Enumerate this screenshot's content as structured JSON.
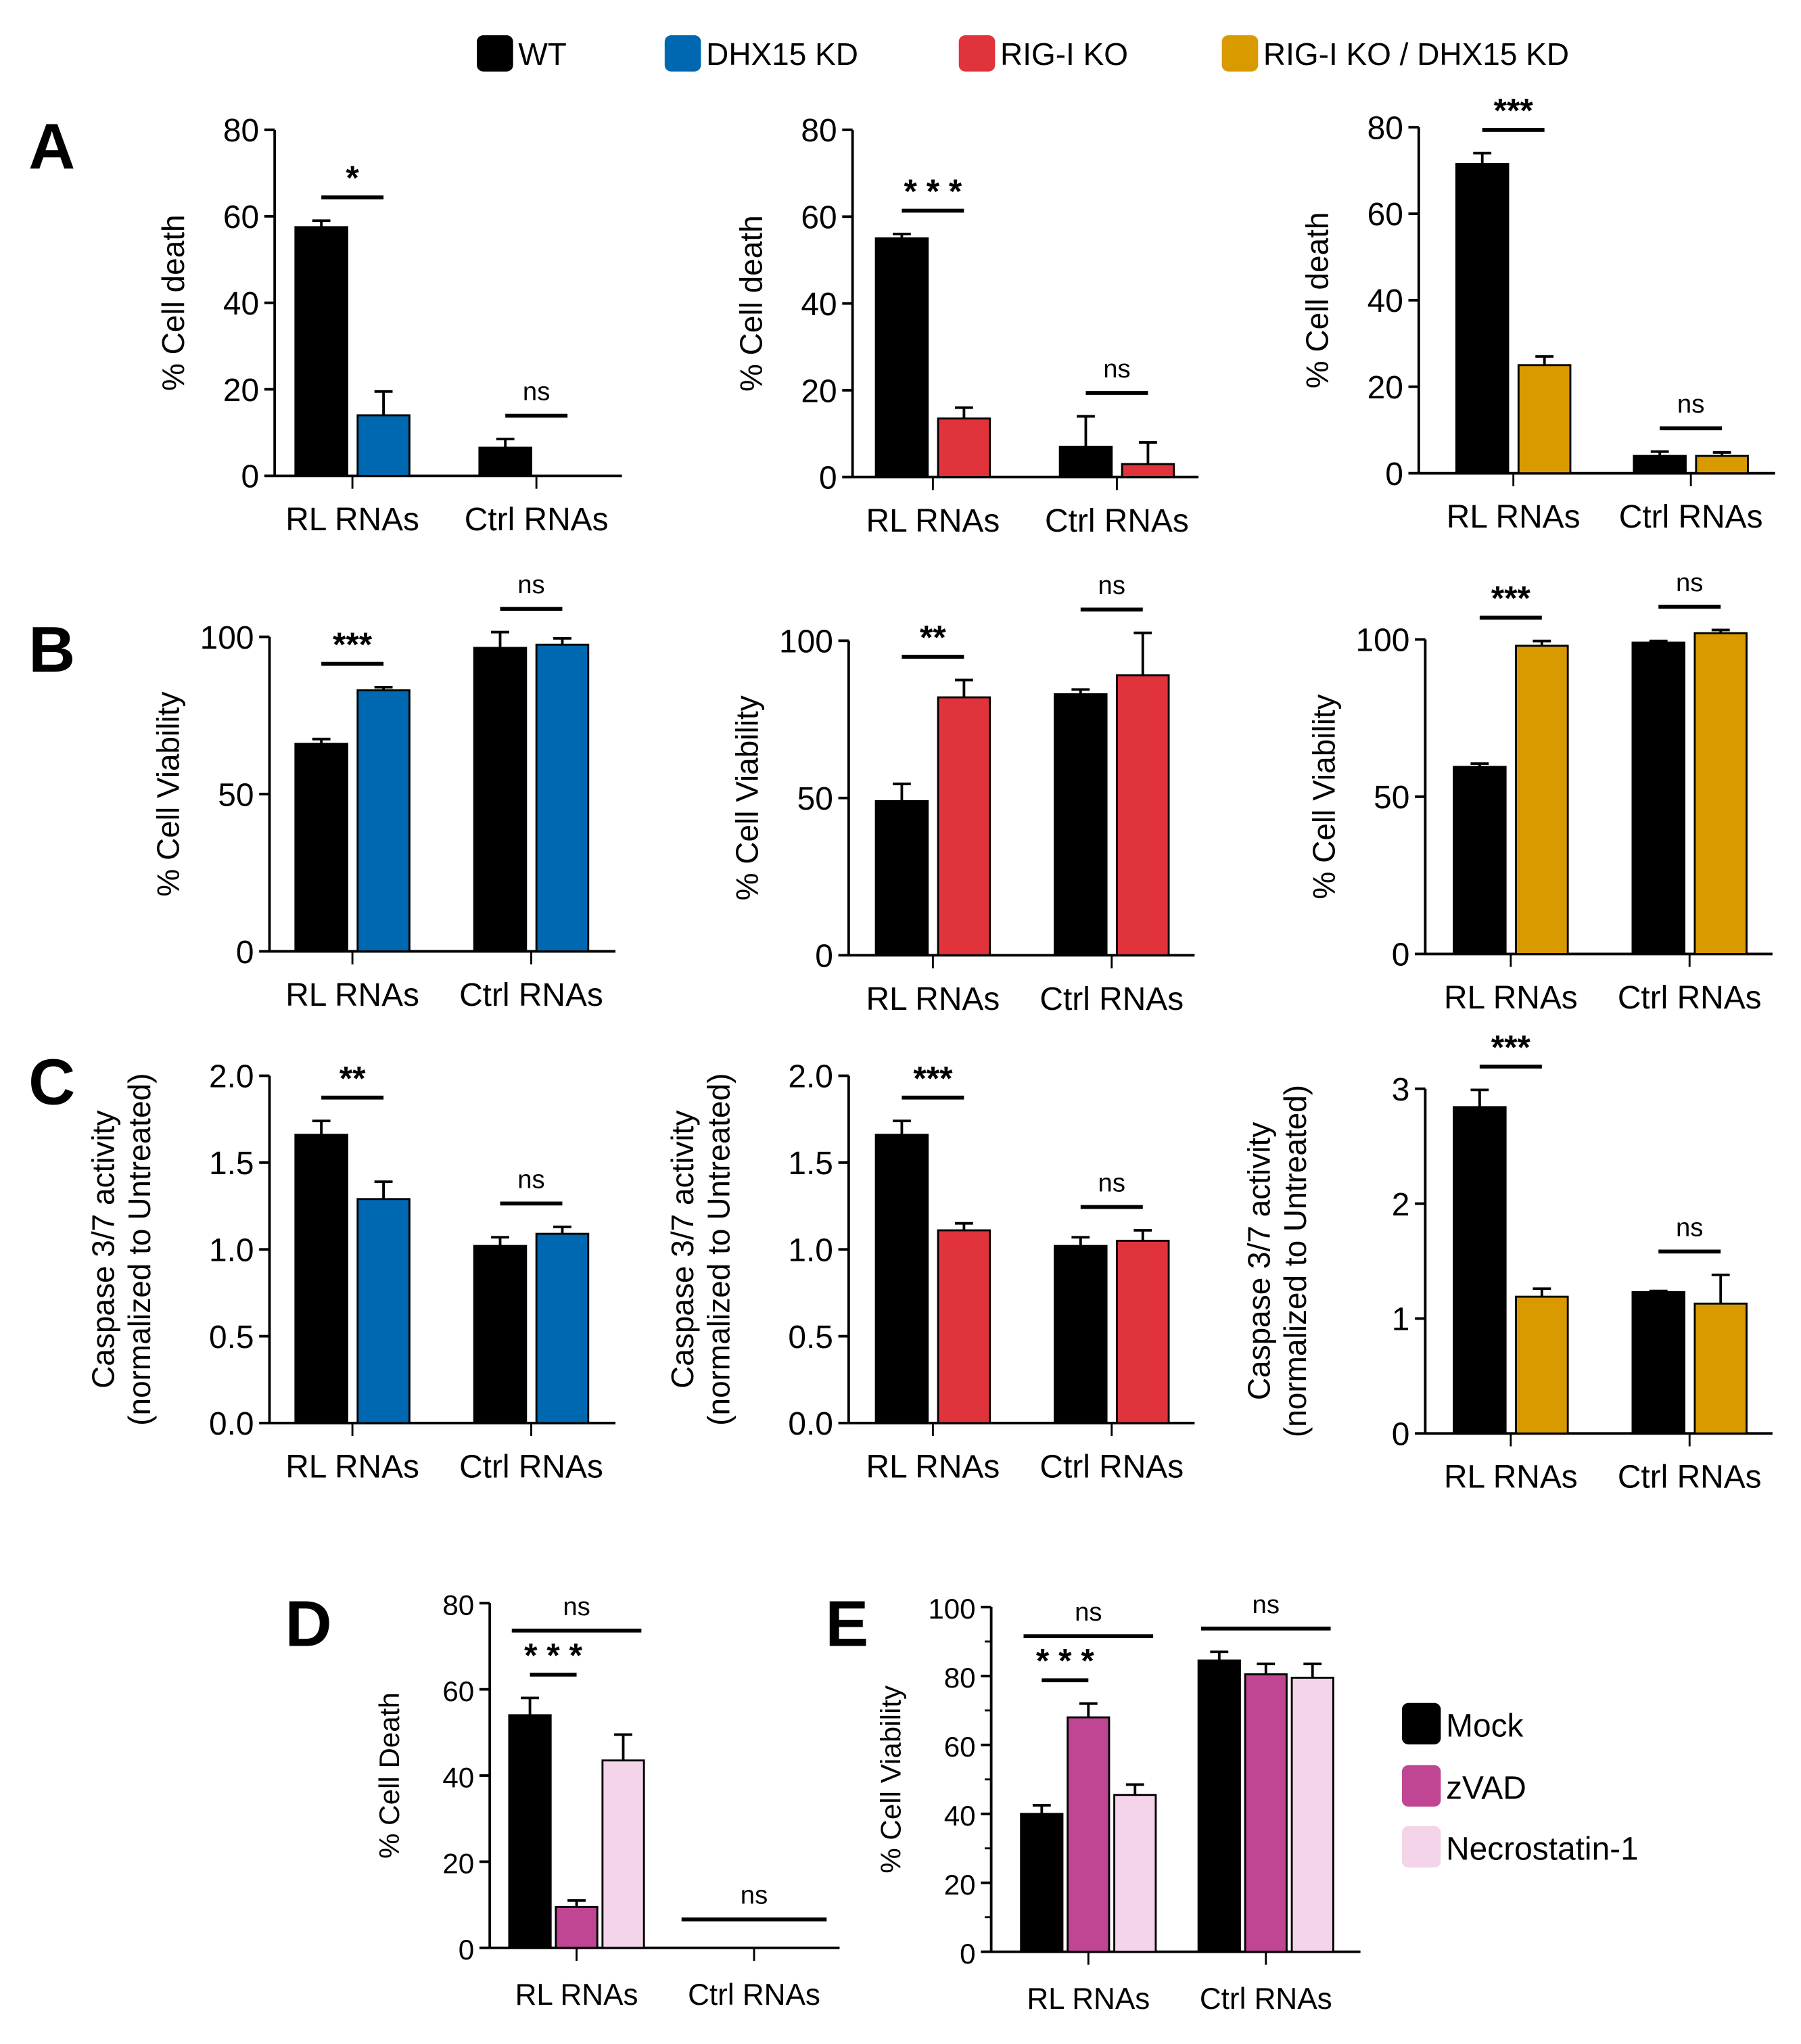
{
  "legend_top": [
    {
      "label": "WT",
      "color": "#000000"
    },
    {
      "label": "DHX15 KD",
      "color": "#0068b0"
    },
    {
      "label": "RIG-I KO",
      "color": "#e0333c"
    },
    {
      "label": "RIG-I KO / DHX15 KD",
      "color": "#d99a00"
    }
  ],
  "legend_bottom": [
    {
      "label": "Mock",
      "color": "#000000"
    },
    {
      "label": "zVAD",
      "color": "#c04593"
    },
    {
      "label": "Necrostatin-1",
      "color": "#f3d4e9"
    }
  ],
  "panel_letters": [
    "A",
    "B",
    "C",
    "D",
    "E"
  ],
  "chart_data": [
    {
      "id": "A1",
      "type": "bar",
      "ylabel": [
        "% Cell death"
      ],
      "ylim": [
        0,
        80
      ],
      "yticks": [
        "0",
        "20",
        "40",
        "60",
        "80"
      ],
      "categories": [
        "RL RNAs",
        "Ctrl RNAs"
      ],
      "series": [
        {
          "name": "WT",
          "color": "#000000",
          "values": [
            57.5,
            6.5
          ],
          "errors": [
            1.5,
            2
          ]
        },
        {
          "name": "DHX15 KD",
          "color": "#0068b0",
          "values": [
            14,
            0
          ],
          "errors": [
            5.5,
            0
          ]
        }
      ],
      "significance": [
        {
          "group": 0,
          "label": "*"
        },
        {
          "group": 1,
          "label": "ns"
        }
      ]
    },
    {
      "id": "A2",
      "type": "bar",
      "ylabel": [
        "% Cell death"
      ],
      "ylim": [
        0,
        80
      ],
      "yticks": [
        "0",
        "20",
        "40",
        "60",
        "80"
      ],
      "categories": [
        "RL RNAs",
        "Ctrl RNAs"
      ],
      "series": [
        {
          "name": "WT",
          "color": "#000000",
          "values": [
            55,
            7
          ],
          "errors": [
            1,
            7
          ]
        },
        {
          "name": "RIG-I KO",
          "color": "#e0333c",
          "values": [
            13.5,
            3
          ],
          "errors": [
            2.5,
            5
          ]
        }
      ],
      "significance": [
        {
          "group": 0,
          "label": "* * *"
        },
        {
          "group": 1,
          "label": "ns"
        }
      ]
    },
    {
      "id": "A3",
      "type": "bar",
      "ylabel": [
        "% Cell death"
      ],
      "ylim": [
        0,
        80
      ],
      "yticks": [
        "0",
        "20",
        "40",
        "60",
        "80"
      ],
      "categories": [
        "RL RNAs",
        "Ctrl RNAs"
      ],
      "series": [
        {
          "name": "WT",
          "color": "#000000",
          "values": [
            71.5,
            4
          ],
          "errors": [
            2.5,
            1
          ]
        },
        {
          "name": "RIG-I KO / DHX15 KD",
          "color": "#d99a00",
          "values": [
            25,
            4
          ],
          "errors": [
            2,
            0.8
          ]
        }
      ],
      "significance": [
        {
          "group": 0,
          "label": "***"
        },
        {
          "group": 1,
          "label": "ns"
        }
      ]
    },
    {
      "id": "B1",
      "type": "bar",
      "ylabel": [
        "% Cell Viability"
      ],
      "ylim": [
        0,
        110
      ],
      "yticks": [
        "0",
        "50",
        "100"
      ],
      "categories": [
        "RL RNAs",
        "Ctrl RNAs"
      ],
      "series": [
        {
          "name": "WT",
          "color": "#000000",
          "values": [
            66,
            96.5
          ],
          "errors": [
            1.5,
            5
          ]
        },
        {
          "name": "DHX15 KD",
          "color": "#0068b0",
          "values": [
            83,
            97.5
          ],
          "errors": [
            1,
            2
          ]
        }
      ],
      "significance": [
        {
          "group": 0,
          "label": "***"
        },
        {
          "group": 1,
          "label": "ns"
        }
      ]
    },
    {
      "id": "B2",
      "type": "bar",
      "ylabel": [
        "% Cell Viability"
      ],
      "ylim": [
        0,
        110
      ],
      "yticks": [
        "0",
        "50",
        "100"
      ],
      "categories": [
        "RL RNAs",
        "Ctrl RNAs"
      ],
      "series": [
        {
          "name": "WT",
          "color": "#000000",
          "values": [
            49,
            83
          ],
          "errors": [
            5.5,
            1.5
          ]
        },
        {
          "name": "RIG-I KO",
          "color": "#e0333c",
          "values": [
            82,
            89
          ],
          "errors": [
            5.5,
            13.5
          ]
        }
      ],
      "significance": [
        {
          "group": 0,
          "label": "**"
        },
        {
          "group": 1,
          "label": "ns"
        }
      ]
    },
    {
      "id": "B3",
      "type": "bar",
      "ylabel": [
        "% Cell Viability"
      ],
      "ylim": [
        0,
        110
      ],
      "yticks": [
        "0",
        "50",
        "100"
      ],
      "categories": [
        "RL RNAs",
        "Ctrl RNAs"
      ],
      "series": [
        {
          "name": "WT",
          "color": "#000000",
          "values": [
            59.5,
            99
          ],
          "errors": [
            1,
            0.5
          ]
        },
        {
          "name": "RIG-I KO / DHX15 KD",
          "color": "#d99a00",
          "values": [
            98,
            102
          ],
          "errors": [
            1.5,
            1
          ]
        }
      ],
      "significance": [
        {
          "group": 0,
          "label": "***"
        },
        {
          "group": 1,
          "label": "ns"
        }
      ]
    },
    {
      "id": "C1",
      "type": "bar",
      "ylabel": [
        "Caspase 3/7 activity",
        "(normalized to Untreated)"
      ],
      "ylim": [
        0,
        2
      ],
      "yticks": [
        "0.0",
        "0.5",
        "1.0",
        "1.5",
        "2.0"
      ],
      "categories": [
        "RL RNAs",
        "Ctrl RNAs"
      ],
      "series": [
        {
          "name": "WT",
          "color": "#000000",
          "values": [
            1.66,
            1.02
          ],
          "errors": [
            0.08,
            0.05
          ]
        },
        {
          "name": "DHX15 KD",
          "color": "#0068b0",
          "values": [
            1.29,
            1.09
          ],
          "errors": [
            0.1,
            0.04
          ]
        }
      ],
      "significance": [
        {
          "group": 0,
          "label": "**"
        },
        {
          "group": 1,
          "label": "ns"
        }
      ]
    },
    {
      "id": "C2",
      "type": "bar",
      "ylabel": [
        "Caspase 3/7 activity",
        "(normalized to Untreated)"
      ],
      "ylim": [
        0,
        2
      ],
      "yticks": [
        "0.0",
        "0.5",
        "1.0",
        "1.5",
        "2.0"
      ],
      "categories": [
        "RL RNAs",
        "Ctrl RNAs"
      ],
      "series": [
        {
          "name": "WT",
          "color": "#000000",
          "values": [
            1.66,
            1.02
          ],
          "errors": [
            0.08,
            0.05
          ]
        },
        {
          "name": "RIG-I KO",
          "color": "#e0333c",
          "values": [
            1.11,
            1.05
          ],
          "errors": [
            0.04,
            0.06
          ]
        }
      ],
      "significance": [
        {
          "group": 0,
          "label": "***"
        },
        {
          "group": 1,
          "label": "ns"
        }
      ]
    },
    {
      "id": "C3",
      "type": "bar",
      "ylabel": [
        "Caspase 3/7 activity",
        "(normalized to Untreated)"
      ],
      "ylim": [
        0,
        3
      ],
      "yticks": [
        "0",
        "1",
        "2",
        "3"
      ],
      "categories": [
        "RL RNAs",
        "Ctrl RNAs"
      ],
      "series": [
        {
          "name": "WT",
          "color": "#000000",
          "values": [
            2.84,
            1.23
          ],
          "errors": [
            0.15,
            0.01
          ]
        },
        {
          "name": "RIG-I KO / DHX15 KD",
          "color": "#d99a00",
          "values": [
            1.19,
            1.13
          ],
          "errors": [
            0.07,
            0.25
          ]
        }
      ],
      "significance": [
        {
          "group": 0,
          "label": "***"
        },
        {
          "group": 1,
          "label": "ns"
        }
      ]
    },
    {
      "id": "D",
      "type": "bar",
      "ylabel": [
        "% Cell Death"
      ],
      "ylim": [
        0,
        80
      ],
      "yticks": [
        "0",
        "20",
        "40",
        "60",
        "80"
      ],
      "categories": [
        "RL RNAs",
        "Ctrl RNAs"
      ],
      "series": [
        {
          "name": "Mock",
          "color": "#000000",
          "values": [
            54,
            0
          ],
          "errors": [
            4,
            0
          ]
        },
        {
          "name": "zVAD",
          "color": "#c04593",
          "values": [
            9.5,
            0
          ],
          "errors": [
            1.5,
            0
          ]
        },
        {
          "name": "Necrostatin-1",
          "color": "#f3d4e9",
          "values": [
            43.5,
            0
          ],
          "errors": [
            6,
            0
          ]
        }
      ],
      "significance": [
        {
          "group": 0,
          "from": 0,
          "to": 1,
          "label": "* * *"
        },
        {
          "group": 0,
          "from": 0,
          "to": 2,
          "label": "ns"
        },
        {
          "group": 1,
          "from": 0,
          "to": 2,
          "label": "ns"
        }
      ]
    },
    {
      "id": "E",
      "type": "bar",
      "ylabel": [
        "% Cell Viability"
      ],
      "ylim": [
        0,
        100
      ],
      "yticks": [
        "0",
        "20",
        "40",
        "60",
        "80",
        "100"
      ],
      "categories": [
        "RL RNAs",
        "Ctrl RNAs"
      ],
      "series": [
        {
          "name": "Mock",
          "color": "#000000",
          "values": [
            40,
            84.5
          ],
          "errors": [
            2.5,
            2.5
          ]
        },
        {
          "name": "zVAD",
          "color": "#c04593",
          "values": [
            68,
            80.5
          ],
          "errors": [
            4,
            3
          ]
        },
        {
          "name": "Necrostatin-1",
          "color": "#f3d4e9",
          "values": [
            45.5,
            79.5
          ],
          "errors": [
            3,
            4
          ]
        }
      ],
      "significance": [
        {
          "group": 0,
          "from": 0,
          "to": 1,
          "label": "* * *"
        },
        {
          "group": 0,
          "from": 0,
          "to": 2,
          "label": "ns"
        },
        {
          "group": 1,
          "from": 0,
          "to": 2,
          "label": "ns"
        }
      ]
    }
  ]
}
